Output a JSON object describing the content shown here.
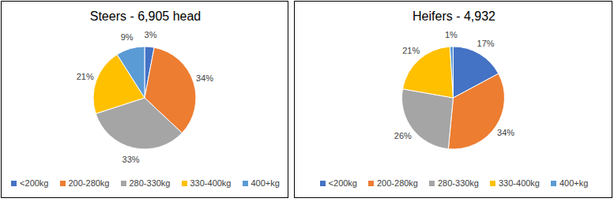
{
  "chart_data": [
    {
      "type": "pie",
      "title": "Steers - 6,905 head",
      "categories": [
        "<200kg",
        "200-280kg",
        "280-330kg",
        "330-400kg",
        "400+kg"
      ],
      "values": [
        3,
        34,
        33,
        21,
        9
      ],
      "value_labels": [
        "3%",
        "34%",
        "33%",
        "21%",
        "9%"
      ],
      "colors": [
        "#4472c4",
        "#ed7d31",
        "#a5a5a5",
        "#ffc000",
        "#5b9bd5"
      ],
      "data_labels": true,
      "legend": "bottom"
    },
    {
      "type": "pie",
      "title": "Heifers - 4,932",
      "categories": [
        "<200kg",
        "200-280kg",
        "280-330kg",
        "330-400kg",
        "400+kg"
      ],
      "values": [
        17,
        34,
        26,
        21,
        1
      ],
      "value_labels": [
        "17%",
        "34%",
        "26%",
        "21%",
        "1%"
      ],
      "colors": [
        "#4472c4",
        "#ed7d31",
        "#a5a5a5",
        "#ffc000",
        "#5b9bd5"
      ],
      "data_labels": true,
      "legend": "bottom"
    }
  ]
}
